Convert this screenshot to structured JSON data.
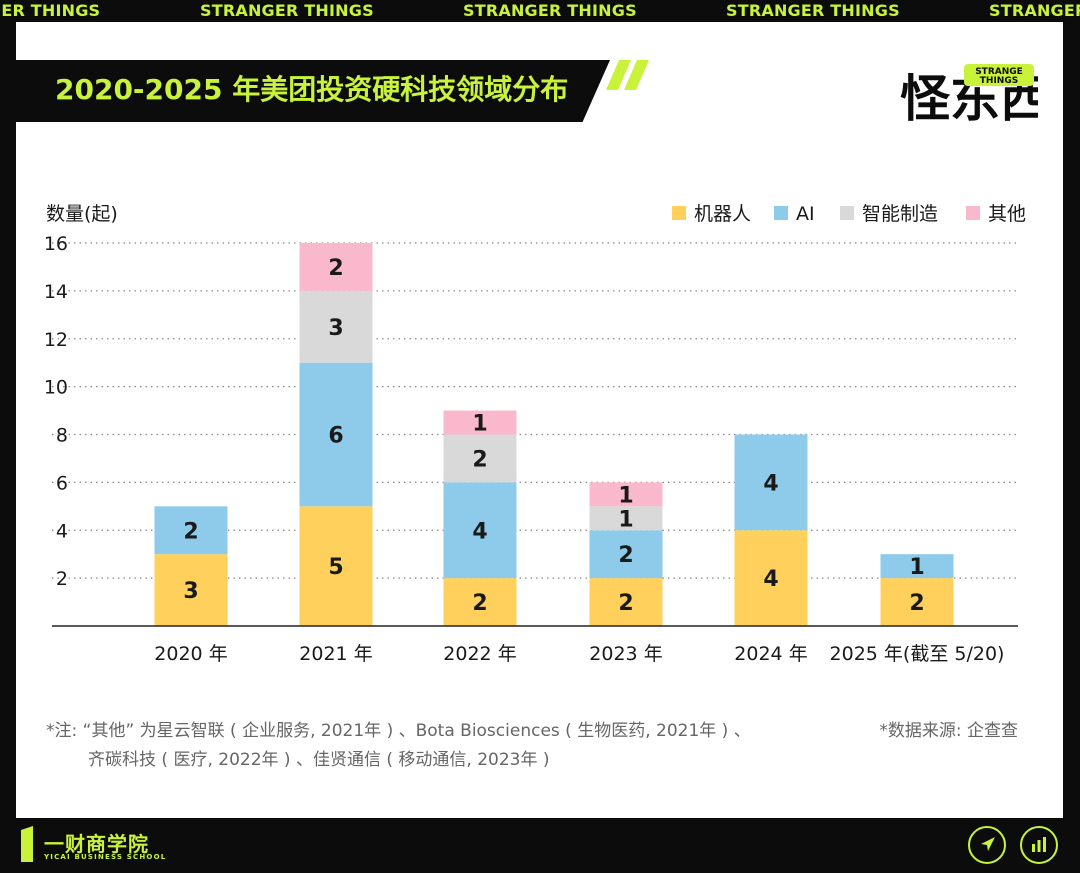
{
  "ticker": {
    "items": [
      "GER THINGS",
      "STRANGER THINGS",
      "STRANGER THINGS",
      "STRANGER THINGS",
      "STRANGER"
    ]
  },
  "header": {
    "title": "2020-2025 年美团投资硬科技领域分布"
  },
  "logo": {
    "badge_line1": "STRANGE",
    "badge_line2": "THINGS",
    "chinese_mark": "怪东西"
  },
  "colors": {
    "accent": "#c9f23a",
    "robot": "#ffd15c",
    "ai": "#8ecbea",
    "manufacturing": "#d9d9d9",
    "other": "#f9b8cc"
  },
  "chart_data": {
    "type": "bar",
    "stacked": true,
    "ylabel": "数量(起)",
    "ylim": [
      0,
      16
    ],
    "yticks": [
      2,
      4,
      6,
      8,
      10,
      12,
      14,
      16
    ],
    "grid": "horizontal dotted",
    "legend_position": "top-right",
    "categories": [
      "2020 年",
      "2021 年",
      "2022 年",
      "2023 年",
      "2024 年",
      "2025 年(截至 5/20)"
    ],
    "series": [
      {
        "name": "机器人",
        "values": [
          3,
          5,
          2,
          2,
          4,
          2
        ]
      },
      {
        "name": "AI",
        "values": [
          2,
          6,
          4,
          2,
          4,
          1
        ]
      },
      {
        "name": "智能制造",
        "values": [
          0,
          3,
          2,
          1,
          0,
          0
        ]
      },
      {
        "name": "其他",
        "values": [
          0,
          2,
          1,
          1,
          0,
          0
        ]
      }
    ]
  },
  "notes": {
    "line1": "*注: “其他” 为星云智联 ( 企业服务, 2021年 ) 、Bota Biosciences ( 生物医药, 2021年 ) 、",
    "line2": "齐碳科技 ( 医疗, 2022年 ) 、佳贤通信 ( 移动通信, 2023年 )",
    "source": "*数据来源: 企查查"
  },
  "footer": {
    "brand_cn": "一财商学院",
    "brand_en": "YICAI BUSINESS SCHOOL",
    "share_icon": "send-arrow-icon",
    "chart_icon": "bar-chart-icon"
  }
}
